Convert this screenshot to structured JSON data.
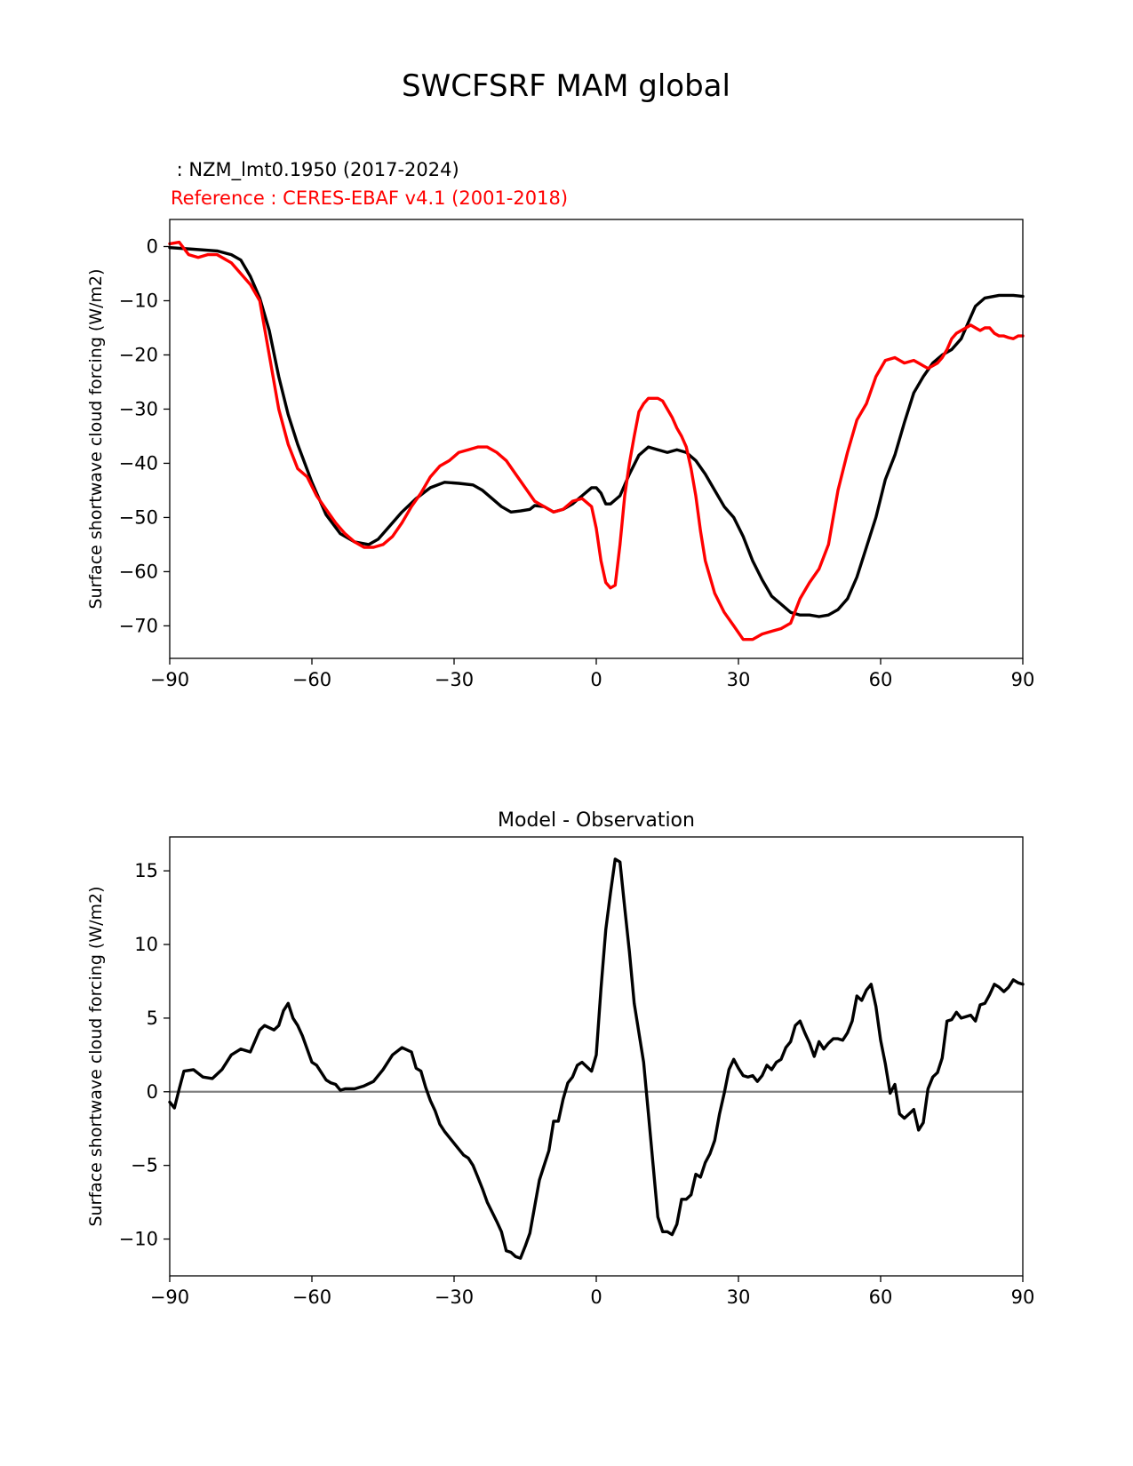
{
  "title": "SWCFSRF MAM global",
  "chart_data": [
    {
      "type": "line",
      "test_label": " : NZM_lmt0.1950 (2017-2024)",
      "reference_label": "Reference : CERES-EBAF v4.1 (2001-2018)",
      "ylabel": "Surface shortwave cloud forcing (W/m2)",
      "xlim": [
        -90,
        90
      ],
      "ylim": [
        -76,
        5
      ],
      "x_ticks": [
        -90,
        -60,
        -30,
        0,
        30,
        60,
        90
      ],
      "x_tick_labels": [
        "−90",
        "−60",
        "−30",
        "0",
        "30",
        "60",
        "90"
      ],
      "y_ticks": [
        0,
        -10,
        -20,
        -30,
        -40,
        -50,
        -60,
        -70
      ],
      "y_tick_labels": [
        "0",
        "−10",
        "−20",
        "−30",
        "−40",
        "−50",
        "−60",
        "−70"
      ],
      "series": [
        {
          "color": "#000000",
          "x": [
            -90,
            -85,
            -80,
            -77,
            -75,
            -73,
            -71,
            -69,
            -67,
            -65,
            -63,
            -60,
            -57,
            -54,
            -51,
            -48,
            -46,
            -44,
            -41,
            -38,
            -35,
            -32,
            -29,
            -26,
            -24,
            -22,
            -20,
            -18,
            -16,
            -14,
            -13,
            -11,
            -9,
            -7,
            -5,
            -3,
            -1,
            0,
            1,
            2,
            3,
            5,
            7,
            9,
            11,
            13,
            15,
            17,
            19,
            21,
            23,
            25,
            27,
            29,
            31,
            33,
            35,
            37,
            39,
            41,
            43,
            45,
            47,
            49,
            51,
            53,
            55,
            57,
            59,
            61,
            63,
            65,
            67,
            69,
            71,
            73,
            75,
            77,
            78,
            79,
            80,
            82,
            85,
            88,
            90
          ],
          "y": [
            -0.2,
            -0.5,
            -0.8,
            -1.5,
            -2.5,
            -5.5,
            -9.5,
            -15.5,
            -24,
            -31,
            -36.5,
            -43.5,
            -49.5,
            -53,
            -54.5,
            -55,
            -54,
            -52,
            -49,
            -46.5,
            -44.5,
            -43.5,
            -43.7,
            -44,
            -45,
            -46.5,
            -48,
            -49,
            -48.8,
            -48.5,
            -47.8,
            -48,
            -49,
            -48.5,
            -47.5,
            -46,
            -44.5,
            -44.5,
            -45.5,
            -47.5,
            -47.5,
            -46,
            -42,
            -38.5,
            -37,
            -37.5,
            -38,
            -37.5,
            -38,
            -39.5,
            -42,
            -45,
            -48,
            -50,
            -53.5,
            -58,
            -61.5,
            -64.5,
            -66,
            -67.5,
            -68,
            -68,
            -68.3,
            -68,
            -67,
            -65,
            -61,
            -55.5,
            -50,
            -43,
            -38.5,
            -32.5,
            -27,
            -24,
            -21.5,
            -20,
            -19,
            -17,
            -15,
            -13,
            -11,
            -9.5,
            -9,
            -9,
            -9.2
          ]
        },
        {
          "color": "#ff0000",
          "x": [
            -90,
            -88,
            -86,
            -84,
            -82,
            -80,
            -77,
            -75,
            -73,
            -71,
            -69,
            -67,
            -65,
            -63,
            -61,
            -59,
            -57,
            -55,
            -53,
            -51,
            -49,
            -47,
            -45,
            -43,
            -41,
            -39,
            -37,
            -35,
            -33,
            -31,
            -29,
            -27,
            -25,
            -23,
            -21,
            -19,
            -17,
            -15,
            -13,
            -11,
            -9,
            -7,
            -5,
            -3,
            -1,
            0,
            1,
            2,
            3,
            4,
            5,
            6,
            7,
            8,
            9,
            10,
            11,
            12,
            13,
            14,
            15,
            16,
            17,
            18,
            19,
            20,
            21,
            22,
            23,
            25,
            27,
            29,
            31,
            33,
            35,
            37,
            39,
            41,
            43,
            45,
            47,
            49,
            51,
            53,
            55,
            57,
            59,
            61,
            63,
            65,
            67,
            68,
            69,
            70,
            71,
            72,
            73,
            74,
            75,
            76,
            77,
            78,
            79,
            80,
            81,
            82,
            83,
            84,
            85,
            86,
            87,
            88,
            89,
            90
          ],
          "y": [
            0.5,
            0.8,
            -1.5,
            -2,
            -1.5,
            -1.5,
            -3,
            -5,
            -7,
            -10,
            -20,
            -30,
            -36.5,
            -41,
            -42.5,
            -46,
            -48.5,
            -51,
            -53,
            -54.5,
            -55.5,
            -55.5,
            -55,
            -53.5,
            -51,
            -48,
            -45.5,
            -42.5,
            -40.5,
            -39.5,
            -38,
            -37.5,
            -37,
            -37,
            -38,
            -39.5,
            -42,
            -44.5,
            -47,
            -48,
            -49,
            -48.5,
            -47,
            -46.5,
            -48,
            -52,
            -58,
            -62,
            -63,
            -62.5,
            -55,
            -46,
            -40,
            -35,
            -30.5,
            -29,
            -28,
            -28,
            -28,
            -28.5,
            -30,
            -31.5,
            -33.5,
            -35,
            -37,
            -41,
            -46,
            -52.5,
            -58,
            -64,
            -67.5,
            -70,
            -72.5,
            -72.5,
            -71.5,
            -71,
            -70.5,
            -69.5,
            -65,
            -62,
            -59.5,
            -55,
            -45,
            -38,
            -32,
            -29,
            -24,
            -21,
            -20.5,
            -21.5,
            -21,
            -21.5,
            -22,
            -22.5,
            -22,
            -21.5,
            -20.5,
            -19,
            -17,
            -16,
            -15.5,
            -15,
            -14.5,
            -15,
            -15.5,
            -15,
            -15,
            -16,
            -16.5,
            -16.5,
            -16.8,
            -17,
            -16.5,
            -16.5
          ]
        }
      ]
    },
    {
      "type": "line",
      "title": "Model - Observation",
      "ylabel": "Surface shortwave cloud forcing (W/m2)",
      "xlim": [
        -90,
        90
      ],
      "ylim": [
        -12.5,
        17.3
      ],
      "x_ticks": [
        -90,
        -60,
        -30,
        0,
        30,
        60,
        90
      ],
      "x_tick_labels": [
        "−90",
        "−60",
        "−30",
        "0",
        "30",
        "60",
        "90"
      ],
      "y_ticks": [
        15,
        10,
        5,
        0,
        -5,
        -10
      ],
      "y_tick_labels": [
        "15",
        "10",
        "5",
        "0",
        "−5",
        "−10"
      ],
      "zero_line_color": "#808080",
      "series": [
        {
          "color": "#000000",
          "x": [
            -90,
            -89,
            -88,
            -87,
            -85,
            -83,
            -81,
            -79,
            -77,
            -75,
            -73,
            -71,
            -70,
            -68,
            -67,
            -66,
            -65,
            -64,
            -63,
            -62,
            -60,
            -59,
            -57,
            -56,
            -55,
            -54,
            -53,
            -51,
            -49,
            -47,
            -45,
            -43,
            -41,
            -39,
            -38,
            -37,
            -36,
            -35,
            -34,
            -33,
            -32,
            -30,
            -28,
            -27,
            -26,
            -25,
            -24,
            -23,
            -21,
            -20,
            -19,
            -18,
            -17,
            -16,
            -15,
            -14,
            -12,
            -11,
            -10,
            -9,
            -8,
            -7,
            -6,
            -5,
            -4,
            -3,
            -2,
            -1,
            0,
            1,
            2,
            3,
            4,
            5,
            6,
            7,
            8,
            9,
            10,
            11,
            12,
            13,
            14,
            15,
            16,
            17,
            18,
            19,
            20,
            21,
            22,
            23,
            24,
            25,
            26,
            27,
            28,
            29,
            30,
            31,
            32,
            33,
            34,
            35,
            36,
            37,
            38,
            39,
            40,
            41,
            42,
            43,
            44,
            45,
            46,
            47,
            48,
            49,
            50,
            51,
            52,
            53,
            54,
            55,
            56,
            57,
            58,
            59,
            60,
            61,
            62,
            63,
            64,
            65,
            66,
            67,
            68,
            69,
            70,
            71,
            72,
            73,
            74,
            75,
            76,
            77,
            78,
            79,
            80,
            81,
            82,
            83,
            84,
            85,
            86,
            87,
            88,
            89,
            90
          ],
          "y": [
            -0.7,
            -1.1,
            0.2,
            1.4,
            1.5,
            1.0,
            0.9,
            1.5,
            2.5,
            2.9,
            2.7,
            4.2,
            4.5,
            4.2,
            4.5,
            5.5,
            6.0,
            5.0,
            4.5,
            3.8,
            2.0,
            1.8,
            0.8,
            0.6,
            0.5,
            0.1,
            0.2,
            0.2,
            0.4,
            0.7,
            1.5,
            2.5,
            3.0,
            2.7,
            1.6,
            1.4,
            0.3,
            -0.6,
            -1.3,
            -2.2,
            -2.7,
            -3.5,
            -4.3,
            -4.5,
            -5.0,
            -5.8,
            -6.6,
            -7.5,
            -8.8,
            -9.5,
            -10.8,
            -10.9,
            -11.2,
            -11.3,
            -10.5,
            -9.6,
            -6.0,
            -5.0,
            -4.0,
            -2.0,
            -2.0,
            -0.5,
            0.6,
            1.0,
            1.8,
            2.0,
            1.7,
            1.4,
            2.5,
            7.0,
            11.0,
            13.5,
            15.8,
            15.6,
            12.5,
            9.5,
            6.0,
            4.0,
            2.0,
            -1.5,
            -5.0,
            -8.5,
            -9.5,
            -9.5,
            -9.7,
            -9.0,
            -7.3,
            -7.3,
            -7.0,
            -5.6,
            -5.8,
            -4.8,
            -4.2,
            -3.3,
            -1.5,
            -0.1,
            1.5,
            2.2,
            1.6,
            1.1,
            1.0,
            1.1,
            0.7,
            1.1,
            1.8,
            1.5,
            2.0,
            2.2,
            3.0,
            3.4,
            4.5,
            4.8,
            4.0,
            3.3,
            2.4,
            3.4,
            2.9,
            3.3,
            3.6,
            3.6,
            3.5,
            4.0,
            4.8,
            6.5,
            6.2,
            6.9,
            7.3,
            5.8,
            3.5,
            1.9,
            -0.1,
            0.5,
            -1.5,
            -1.8,
            -1.5,
            -1.2,
            -2.6,
            -2.1,
            0.2,
            1.0,
            1.3,
            2.3,
            4.8,
            4.9,
            5.4,
            5.0,
            5.1,
            5.2,
            4.8,
            5.9,
            6.0,
            6.6,
            7.3,
            7.1,
            6.8,
            7.1,
            7.6,
            7.4,
            7.3
          ]
        }
      ]
    }
  ]
}
